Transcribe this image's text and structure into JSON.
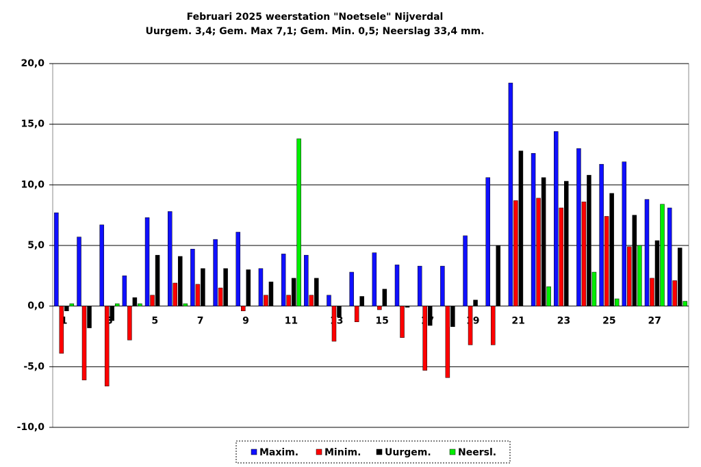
{
  "chart_data": {
    "type": "bar",
    "title": "Februari 2025 weerstation \"Noetsele\" Nijverdal",
    "subtitle": "Uurgem. 3,4; Gem. Max 7,1; Gem. Min. 0,5;  Neerslag 33,4 mm.",
    "categories": [
      "1",
      null,
      "3",
      null,
      "5",
      null,
      "7",
      null,
      "9",
      null,
      "11",
      null,
      "13",
      null,
      "15",
      null,
      "17",
      null,
      "19",
      null,
      "21",
      null,
      "23",
      null,
      "25",
      null,
      "27",
      null
    ],
    "series": [
      {
        "name": "Maxim.",
        "color": "#1010ff",
        "values": [
          7.7,
          5.7,
          6.7,
          2.5,
          7.3,
          7.8,
          4.7,
          5.5,
          6.1,
          3.1,
          4.3,
          4.2,
          0.9,
          2.8,
          4.4,
          3.4,
          3.3,
          3.3,
          5.8,
          10.6,
          18.4,
          12.6,
          14.4,
          13.0,
          11.7,
          11.9,
          8.8,
          8.1
        ]
      },
      {
        "name": "Minim.",
        "color": "#ff0000",
        "values": [
          -3.9,
          -6.1,
          -6.6,
          -2.8,
          0.9,
          1.9,
          1.8,
          1.5,
          -0.4,
          0.9,
          0.9,
          0.9,
          -2.9,
          -1.3,
          -0.3,
          -2.6,
          -5.3,
          -5.9,
          -3.2,
          -3.2,
          8.7,
          8.9,
          8.1,
          8.6,
          7.4,
          4.9,
          2.3,
          2.1
        ]
      },
      {
        "name": "Uurgem.",
        "color": "#000000",
        "values": [
          -0.4,
          -1.8,
          -1.2,
          0.7,
          4.2,
          4.1,
          3.1,
          3.1,
          3.0,
          2.0,
          2.3,
          2.3,
          -0.9,
          0.8,
          1.4,
          -0.1,
          -1.6,
          -1.7,
          0.5,
          5.0,
          12.8,
          10.6,
          10.3,
          10.8,
          9.3,
          7.5,
          5.4,
          4.8
        ]
      },
      {
        "name": "Neersl.",
        "color": "#00ee00",
        "values": [
          0.2,
          0,
          0.2,
          0.2,
          0,
          0.2,
          0,
          0,
          0,
          0,
          13.8,
          0,
          0,
          0,
          0,
          0,
          0,
          0,
          0,
          0,
          0,
          1.6,
          0,
          2.8,
          0.6,
          5.0,
          8.4,
          0.4
        ]
      }
    ],
    "ylim": [
      -10,
      20
    ],
    "yticks": [
      {
        "value": -10,
        "label": "-10,0"
      },
      {
        "value": -5,
        "label": "-5,0"
      },
      {
        "value": 0,
        "label": "0,0"
      },
      {
        "value": 5,
        "label": "5,0"
      },
      {
        "value": 10,
        "label": "10,0"
      },
      {
        "value": 15,
        "label": "15,0"
      },
      {
        "value": 20,
        "label": "20,0"
      }
    ],
    "grid": true,
    "legend": "bottom"
  }
}
